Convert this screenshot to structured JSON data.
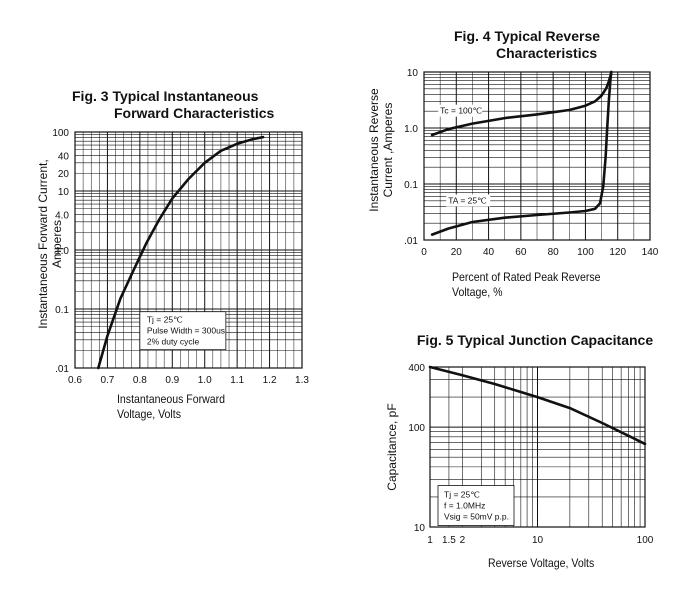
{
  "chart_data": [
    {
      "id": "fig3",
      "type": "line",
      "title": [
        "Fig. 3 Typical Instantaneous",
        "Forward Characteristics"
      ],
      "xlabel": [
        "Instantaneous Forward",
        "Voltage, Volts"
      ],
      "ylabel": [
        "Instantaneous Forward Current,",
        "Amperes"
      ],
      "x_scale": "linear",
      "y_scale": "log",
      "xlim": [
        0.6,
        1.3
      ],
      "ylim": [
        0.01,
        100
      ],
      "x_ticks": [
        "0.6",
        "0.7",
        "0.8",
        "0.9",
        "1.0",
        "1.1",
        "1.2",
        "1.3"
      ],
      "y_ticks": [
        {
          "value": 100,
          "label": "100"
        },
        {
          "value": 40,
          "label": "40"
        },
        {
          "value": 20,
          "label": "20"
        },
        {
          "value": 10,
          "label": "10"
        },
        {
          "value": 4,
          "label": "4.0"
        },
        {
          "value": 1,
          "label": "1.0"
        },
        {
          "value": 0.1,
          "label": "0.1"
        },
        {
          "value": 0.01,
          "label": ".01"
        }
      ],
      "grid": true,
      "annotation": [
        "Tj = 25℃",
        "Pulse Width = 300us",
        "2% duty cycle"
      ],
      "series": [
        {
          "x": [
            0.672,
            0.7,
            0.74,
            0.78,
            0.82,
            0.86,
            0.9,
            0.95,
            1.0,
            1.05,
            1.1,
            1.15,
            1.18
          ],
          "y": [
            0.01,
            0.035,
            0.15,
            0.45,
            1.3,
            3.3,
            7.5,
            16,
            30,
            48,
            63,
            76,
            82
          ]
        }
      ]
    },
    {
      "id": "fig4",
      "type": "line",
      "title": [
        "Fig. 4 Typical Reverse",
        "Characteristics"
      ],
      "xlabel": [
        "Percent of Rated Peak  Reverse",
        "Voltage, %"
      ],
      "ylabel": [
        "Instantaneous Reverse",
        "Current ,Amperes"
      ],
      "x_scale": "linear",
      "y_scale": "log",
      "xlim": [
        0,
        140
      ],
      "ylim": [
        0.01,
        10
      ],
      "x_ticks": [
        "0",
        "20",
        "40",
        "60",
        "80",
        "100",
        "120",
        "140"
      ],
      "y_ticks": [
        {
          "value": 10,
          "label": "10"
        },
        {
          "value": 1,
          "label": "1.0"
        },
        {
          "value": 0.1,
          "label": "0.1"
        },
        {
          "value": 0.01,
          "label": ".01"
        }
      ],
      "grid": true,
      "series": [
        {
          "name": "Tc = 100℃",
          "x": [
            5,
            15,
            30,
            50,
            70,
            90,
            100,
            106,
            110,
            113,
            114.5,
            115.5,
            116
          ],
          "y": [
            0.75,
            0.95,
            1.2,
            1.5,
            1.75,
            2.1,
            2.5,
            3.0,
            3.8,
            5.2,
            6.8,
            8.6,
            10
          ]
        },
        {
          "name": "TA = 25℃",
          "x": [
            5,
            15,
            30,
            50,
            70,
            90,
            100,
            106,
            109,
            111,
            112.5,
            113.5,
            114.5,
            115.5,
            116
          ],
          "y": [
            0.0125,
            0.016,
            0.021,
            0.025,
            0.028,
            0.031,
            0.033,
            0.036,
            0.045,
            0.09,
            0.3,
            1.0,
            3.0,
            7.5,
            10
          ]
        }
      ]
    },
    {
      "id": "fig5",
      "type": "line",
      "title": [
        "Fig. 5 Typical Junction Capacitance"
      ],
      "xlabel": [
        "Reverse Voltage, Volts"
      ],
      "ylabel": [
        "Capacitance, pF"
      ],
      "x_scale": "log",
      "y_scale": "log",
      "xlim": [
        1,
        100
      ],
      "ylim": [
        10,
        400
      ],
      "x_ticks": [
        {
          "value": 1,
          "label": "1"
        },
        {
          "value": 1.5,
          "label": "1.5"
        },
        {
          "value": 2,
          "label": "2"
        },
        {
          "value": 10,
          "label": "10"
        },
        {
          "value": 100,
          "label": "100"
        }
      ],
      "y_ticks": [
        {
          "value": 400,
          "label": "400"
        },
        {
          "value": 100,
          "label": "100"
        },
        {
          "value": 10,
          "label": "10"
        }
      ],
      "grid": true,
      "annotation": [
        "Tj = 25℃",
        "f = 1.0MHz",
        "Vsig = 50mV p.p."
      ],
      "series": [
        {
          "x": [
            1,
            2,
            4,
            7,
            10,
            20,
            40,
            70,
            100
          ],
          "y": [
            400,
            330,
            270,
            225,
            200,
            155,
            110,
            82,
            68
          ]
        }
      ]
    }
  ]
}
